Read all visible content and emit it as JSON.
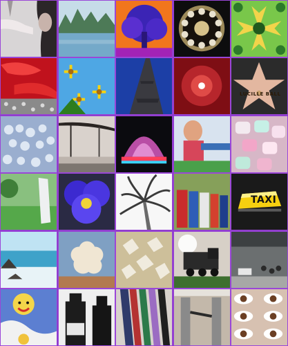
{
  "mosaic": {
    "border_color": "#8a36c8",
    "tiles": [
      {
        "icon": "woman-arm-icon"
      },
      {
        "icon": "river-mountains-icon"
      },
      {
        "icon": "psychedelic-tree-icon"
      },
      {
        "icon": "rotary-phone-dial-icon"
      },
      {
        "icon": "kaleidoscope-icon"
      },
      {
        "icon": "red-flower-closeup-icon"
      },
      {
        "icon": "yellow-daisies-icon"
      },
      {
        "icon": "eiffel-tower-icon"
      },
      {
        "icon": "red-glass-icon"
      },
      {
        "icon": "walk-of-fame-star-icon"
      },
      {
        "icon": "cloud-sky-icon"
      },
      {
        "icon": "bridge-fog-icon"
      },
      {
        "icon": "fountain-lights-icon"
      },
      {
        "icon": "circus-statue-icon"
      },
      {
        "icon": "marshmallows-icon"
      },
      {
        "icon": "white-sculpture-icon"
      },
      {
        "icon": "pansy-flower-icon"
      },
      {
        "icon": "palm-tree-icon"
      },
      {
        "icon": "newspaper-boxes-icon"
      },
      {
        "icon": "taxi-sign-icon"
      },
      {
        "icon": "ocean-rocks-icon"
      },
      {
        "icon": "cumulus-clouds-icon"
      },
      {
        "icon": "crystals-icon"
      },
      {
        "icon": "steam-train-icon"
      },
      {
        "icon": "train-station-icon"
      },
      {
        "icon": "clown-face-icon"
      },
      {
        "icon": "bottles-icon"
      },
      {
        "icon": "neckties-icon"
      },
      {
        "icon": "turnstiles-icon"
      },
      {
        "icon": "eyes-grid-icon"
      }
    ],
    "labels": {
      "walk_of_fame": "LUCILLE BALL",
      "taxi": "TAXI"
    }
  }
}
